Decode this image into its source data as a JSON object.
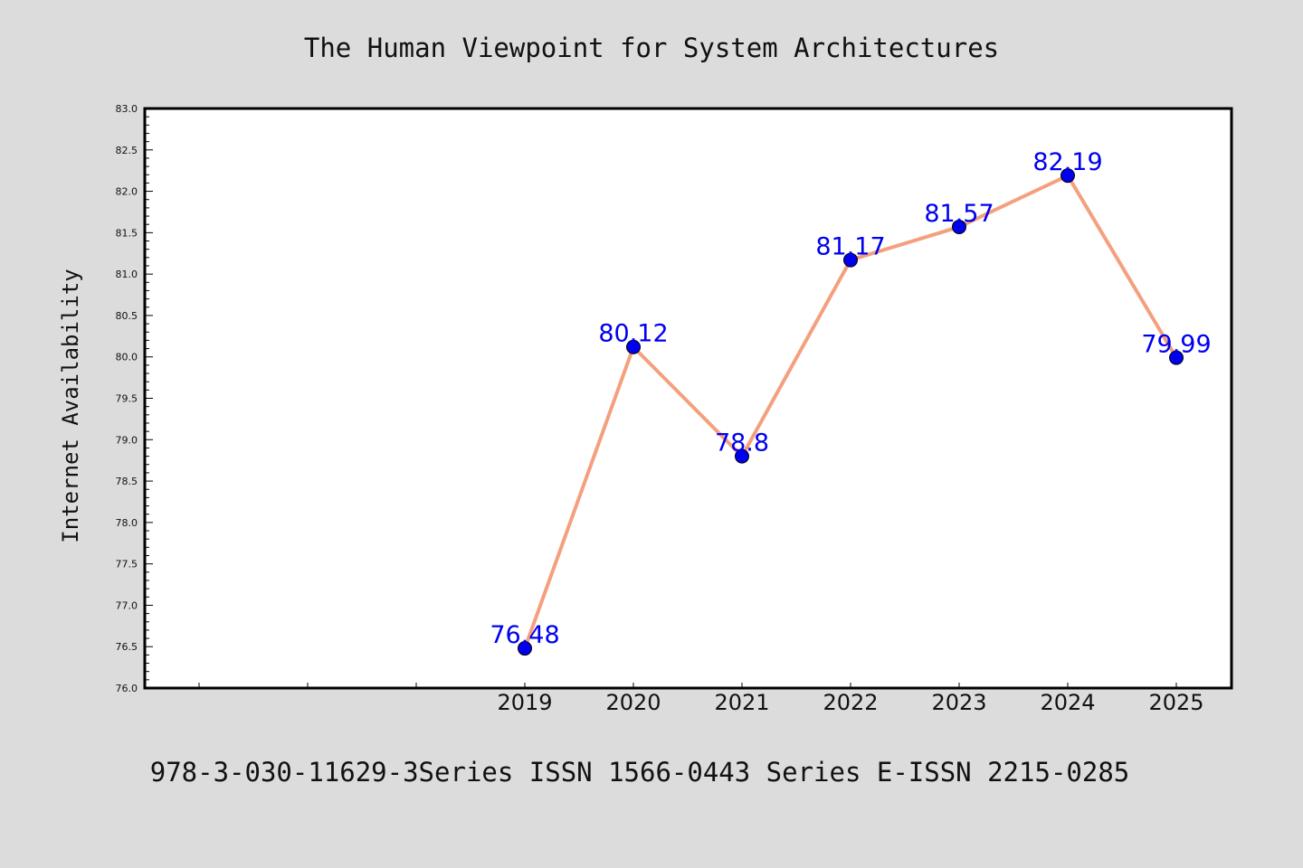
{
  "chart_data": {
    "type": "line",
    "title": "The Human Viewpoint for System Architectures",
    "xlabel": "",
    "ylabel": "Internet Availability",
    "categories": [
      "2019",
      "2020",
      "2021",
      "2022",
      "2023",
      "2024",
      "2025"
    ],
    "series": [
      {
        "values": [
          76.48,
          80.12,
          78.8,
          81.17,
          81.57,
          82.19,
          79.99
        ]
      }
    ],
    "data_labels": [
      "76.48",
      "80.12",
      "78.8",
      "81.17",
      "81.57",
      "82.19",
      "79.99"
    ],
    "ylim": [
      76.0,
      83.0
    ],
    "yticks": [
      "76.0",
      "76.5",
      "77.0",
      "77.5",
      "78.0",
      "78.5",
      "79.0",
      "79.5",
      "80.0",
      "80.5",
      "81.0",
      "81.5",
      "82.0",
      "82.5",
      "83.0"
    ],
    "grid": false,
    "legend": "none",
    "colors": {
      "line": "#f4a07e",
      "marker": "#0000ee",
      "label": "#0000ee",
      "background": "#dcdcdc",
      "plot": "#ffffff"
    }
  },
  "footer": "978-3-030-11629-3Series ISSN 1566-0443 Series E-ISSN 2215-0285"
}
